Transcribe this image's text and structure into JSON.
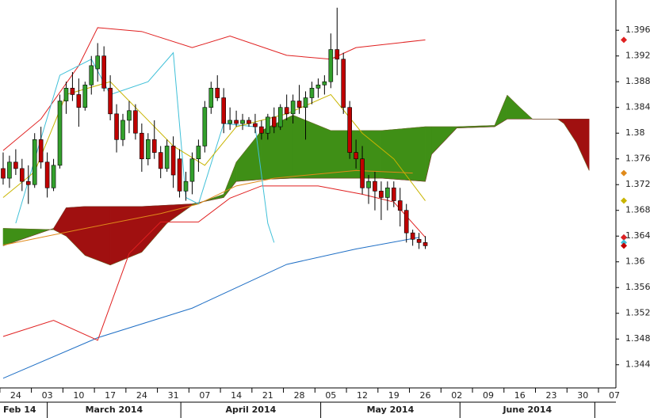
{
  "chart_data": {
    "type": "candlestick",
    "xlim": [
      -0.5,
      97.25
    ],
    "ylim": [
      1.3404,
      1.4007
    ],
    "yticks": [
      1.344,
      1.348,
      1.352,
      1.356,
      1.36,
      1.364,
      1.368,
      1.372,
      1.376,
      1.38,
      1.384,
      1.388,
      1.392,
      1.396
    ],
    "xticks": [
      {
        "value": 2,
        "label": "24"
      },
      {
        "value": 7,
        "label": "03"
      },
      {
        "value": 12,
        "label": "10"
      },
      {
        "value": 17,
        "label": "17"
      },
      {
        "value": 22,
        "label": "24"
      },
      {
        "value": 27,
        "label": "31"
      },
      {
        "value": 32,
        "label": "07"
      },
      {
        "value": 37,
        "label": "14"
      },
      {
        "value": 42,
        "label": "21"
      },
      {
        "value": 47,
        "label": "28"
      },
      {
        "value": 52,
        "label": "05"
      },
      {
        "value": 57,
        "label": "12"
      },
      {
        "value": 62,
        "label": "19"
      },
      {
        "value": 67,
        "label": "26"
      },
      {
        "value": 72,
        "label": "02"
      },
      {
        "value": 77,
        "label": "09"
      },
      {
        "value": 82,
        "label": "16"
      },
      {
        "value": 87,
        "label": "23"
      },
      {
        "value": 92,
        "label": "30"
      },
      {
        "value": 97,
        "label": "07"
      }
    ],
    "months": [
      "Feb 14",
      "March 2014",
      "April 2014",
      "May 2014",
      "June 2014"
    ],
    "month_ticks": [
      7,
      28.2,
      50.4,
      72.5,
      93.9
    ],
    "candles": {
      "up_color": "#33a02c",
      "down_color": "#c00000",
      "x": [
        0,
        1,
        2,
        3,
        4,
        5,
        6,
        7,
        8,
        9,
        10,
        11,
        12,
        13,
        14,
        15,
        16,
        17,
        18,
        19,
        20,
        21,
        22,
        23,
        24,
        25,
        26,
        27,
        28,
        29,
        30,
        31,
        32,
        33,
        34,
        35,
        36,
        37,
        38,
        39,
        40,
        41,
        42,
        43,
        44,
        45,
        46,
        47,
        48,
        49,
        50,
        51,
        52,
        53,
        54,
        55,
        56,
        57,
        58,
        59,
        60,
        61,
        62,
        63,
        64,
        65,
        66,
        67
      ],
      "open": [
        1.3745,
        1.373,
        1.3755,
        1.3745,
        1.3725,
        1.372,
        1.379,
        1.3755,
        1.3715,
        1.375,
        1.385,
        1.387,
        1.386,
        1.384,
        1.3875,
        1.39,
        1.392,
        1.387,
        1.383,
        1.379,
        1.382,
        1.3835,
        1.38,
        1.376,
        1.379,
        1.377,
        1.3745,
        1.378,
        1.376,
        1.371,
        1.3725,
        1.376,
        1.378,
        1.384,
        1.387,
        1.3855,
        1.3815,
        1.382,
        1.3815,
        1.382,
        1.3815,
        1.381,
        1.38,
        1.3825,
        1.381,
        1.384,
        1.383,
        1.385,
        1.384,
        1.3855,
        1.387,
        1.3875,
        1.388,
        1.393,
        1.3915,
        1.384,
        1.377,
        1.376,
        1.3715,
        1.3725,
        1.371,
        1.37,
        1.3715,
        1.3695,
        1.368,
        1.3645,
        1.3635,
        1.363
      ],
      "high": [
        1.377,
        1.3765,
        1.3775,
        1.376,
        1.375,
        1.38,
        1.381,
        1.377,
        1.376,
        1.386,
        1.388,
        1.3895,
        1.3885,
        1.388,
        1.392,
        1.394,
        1.3935,
        1.389,
        1.3845,
        1.383,
        1.385,
        1.3845,
        1.3815,
        1.38,
        1.382,
        1.378,
        1.379,
        1.3795,
        1.3775,
        1.374,
        1.377,
        1.379,
        1.385,
        1.388,
        1.389,
        1.387,
        1.384,
        1.3835,
        1.383,
        1.3825,
        1.383,
        1.382,
        1.383,
        1.384,
        1.3845,
        1.386,
        1.386,
        1.3875,
        1.3865,
        1.388,
        1.3885,
        1.389,
        1.3955,
        1.3995,
        1.3925,
        1.385,
        1.379,
        1.378,
        1.3735,
        1.374,
        1.3725,
        1.3725,
        1.3725,
        1.3715,
        1.369,
        1.365,
        1.3645,
        1.364
      ],
      "low": [
        1.372,
        1.3715,
        1.3735,
        1.371,
        1.369,
        1.3715,
        1.3745,
        1.37,
        1.371,
        1.3745,
        1.383,
        1.385,
        1.381,
        1.3835,
        1.386,
        1.388,
        1.3865,
        1.382,
        1.377,
        1.378,
        1.38,
        1.379,
        1.374,
        1.375,
        1.376,
        1.373,
        1.374,
        1.3715,
        1.37,
        1.3695,
        1.3705,
        1.374,
        1.377,
        1.383,
        1.385,
        1.38,
        1.3805,
        1.381,
        1.3805,
        1.381,
        1.38,
        1.379,
        1.379,
        1.38,
        1.3805,
        1.382,
        1.3815,
        1.383,
        1.379,
        1.3845,
        1.3855,
        1.386,
        1.387,
        1.389,
        1.383,
        1.376,
        1.3745,
        1.3705,
        1.369,
        1.368,
        1.3665,
        1.368,
        1.3685,
        1.3655,
        1.363,
        1.3625,
        1.362,
        1.362
      ],
      "close": [
        1.373,
        1.3755,
        1.3745,
        1.3725,
        1.372,
        1.379,
        1.3755,
        1.3715,
        1.375,
        1.385,
        1.387,
        1.386,
        1.384,
        1.3875,
        1.3905,
        1.392,
        1.387,
        1.383,
        1.379,
        1.382,
        1.3835,
        1.38,
        1.376,
        1.379,
        1.377,
        1.3745,
        1.378,
        1.3735,
        1.371,
        1.3725,
        1.376,
        1.378,
        1.384,
        1.387,
        1.3855,
        1.3815,
        1.382,
        1.3815,
        1.382,
        1.3815,
        1.381,
        1.38,
        1.3825,
        1.381,
        1.384,
        1.383,
        1.385,
        1.384,
        1.3855,
        1.387,
        1.3875,
        1.388,
        1.393,
        1.3915,
        1.384,
        1.377,
        1.376,
        1.3715,
        1.3725,
        1.371,
        1.37,
        1.3715,
        1.3695,
        1.368,
        1.3645,
        1.3635,
        1.363,
        1.3625
      ]
    },
    "cloud": {
      "up_color": "#3f8f16",
      "down_color": "#a01010",
      "x": [
        0,
        8,
        10,
        13,
        17,
        22,
        26,
        30,
        35,
        37,
        41,
        46,
        52,
        60,
        67,
        68,
        72,
        78,
        80,
        82,
        84,
        88,
        89,
        91,
        93
      ],
      "span_a": [
        1.3652,
        1.365,
        1.364,
        1.361,
        1.3595,
        1.3615,
        1.366,
        1.3688,
        1.3705,
        1.3755,
        1.3804,
        1.3828,
        1.3804,
        1.3804,
        1.381,
        1.381,
        1.381,
        1.3812,
        1.3859,
        1.384,
        1.3822,
        1.3822,
        1.3815,
        1.3785,
        1.3742
      ],
      "span_b": [
        1.3625,
        1.3652,
        1.3684,
        1.3686,
        1.3686,
        1.3686,
        1.3688,
        1.369,
        1.37,
        1.3725,
        1.3728,
        1.373,
        1.373,
        1.373,
        1.3725,
        1.3767,
        1.3808,
        1.381,
        1.3822,
        1.3822,
        1.3822,
        1.3822,
        1.3822,
        1.3822,
        1.3822
      ]
    },
    "lines": [
      {
        "color": "#1f6fc5",
        "x": [
          0,
          15,
          30,
          45,
          56,
          66
        ],
        "values": [
          1.3419,
          1.3482,
          1.3528,
          1.3596,
          1.362,
          1.3638
        ]
      },
      {
        "color": "#e02020",
        "x": [
          0,
          6,
          12,
          15,
          22,
          30,
          36,
          45,
          52,
          56,
          67
        ],
        "values": [
          1.3773,
          1.3822,
          1.3905,
          1.3964,
          1.3958,
          1.3933,
          1.3951,
          1.3921,
          1.3915,
          1.3933,
          1.3945
        ]
      },
      {
        "color": "#e02020",
        "x": [
          0,
          8,
          15,
          20,
          25,
          31,
          36,
          41,
          50,
          57,
          62,
          67
        ],
        "values": [
          1.3484,
          1.3509,
          1.3478,
          1.3613,
          1.3662,
          1.3662,
          1.3699,
          1.3718,
          1.3718,
          1.3705,
          1.3693,
          1.3638
        ]
      },
      {
        "color": "#e08a1a",
        "x": [
          0,
          12,
          25,
          31,
          37,
          43,
          56,
          65
        ],
        "values": [
          1.3626,
          1.365,
          1.3675,
          1.369,
          1.3718,
          1.373,
          1.3742,
          1.3738
        ]
      },
      {
        "color": "#40c0d8",
        "x": [
          2,
          9,
          14,
          17,
          23,
          27,
          29,
          31,
          35,
          40,
          42,
          43
        ],
        "values": [
          1.366,
          1.389,
          1.3915,
          1.386,
          1.388,
          1.3925,
          1.37,
          1.369,
          1.3815,
          1.381,
          1.366,
          1.363
        ]
      },
      {
        "color": "#c8b400",
        "x": [
          0,
          5,
          10,
          17,
          22,
          27,
          32,
          37,
          45,
          52,
          57,
          62,
          67
        ],
        "values": [
          1.37,
          1.374,
          1.386,
          1.388,
          1.383,
          1.378,
          1.375,
          1.381,
          1.383,
          1.386,
          1.38,
          1.376,
          1.3695
        ]
      }
    ]
  }
}
